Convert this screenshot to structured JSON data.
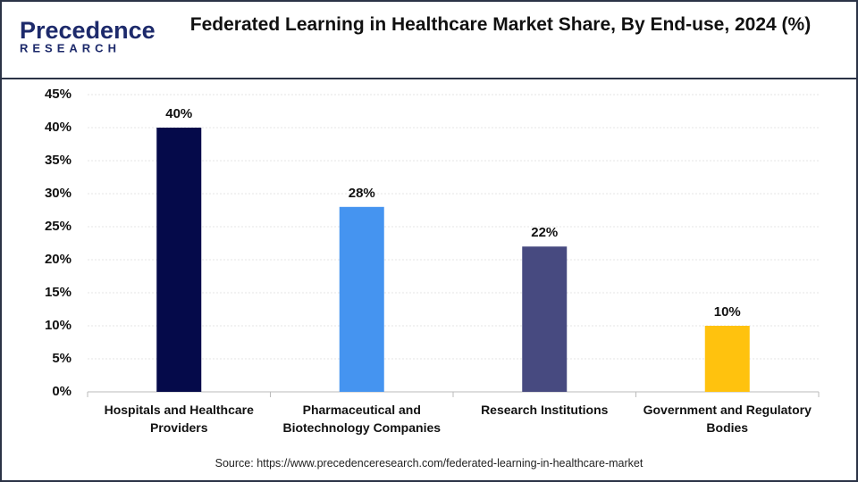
{
  "logo": {
    "name": "Precedence",
    "sub": "RESEARCH"
  },
  "chart_data": {
    "type": "bar",
    "title": "Federated Learning in Healthcare Market Share, By End-use, 2024 (%)",
    "categories": [
      "Hospitals and Healthcare Providers",
      "Pharmaceutical and Biotechnology Companies",
      "Research Institutions",
      "Government and Regulatory Bodies"
    ],
    "values": [
      40,
      28,
      22,
      10
    ],
    "value_labels": [
      "40%",
      "28%",
      "22%",
      "10%"
    ],
    "colors": [
      "#050a4a",
      "#4594f0",
      "#474a80",
      "#ffc20e"
    ],
    "ylim": [
      0,
      45
    ],
    "yticks": [
      {
        "value": 0,
        "label": "0%"
      },
      {
        "value": 5,
        "label": "5%"
      },
      {
        "value": 10,
        "label": "10%"
      },
      {
        "value": 15,
        "label": "15%"
      },
      {
        "value": 20,
        "label": "20%"
      },
      {
        "value": 25,
        "label": "25%"
      },
      {
        "value": 30,
        "label": "30%"
      },
      {
        "value": 35,
        "label": "35%"
      },
      {
        "value": 40,
        "label": "40%"
      },
      {
        "value": 45,
        "label": "45%"
      }
    ],
    "grid": true,
    "source": "Source: https://www.precedenceresearch.com/federated-learning-in-healthcare-market"
  }
}
